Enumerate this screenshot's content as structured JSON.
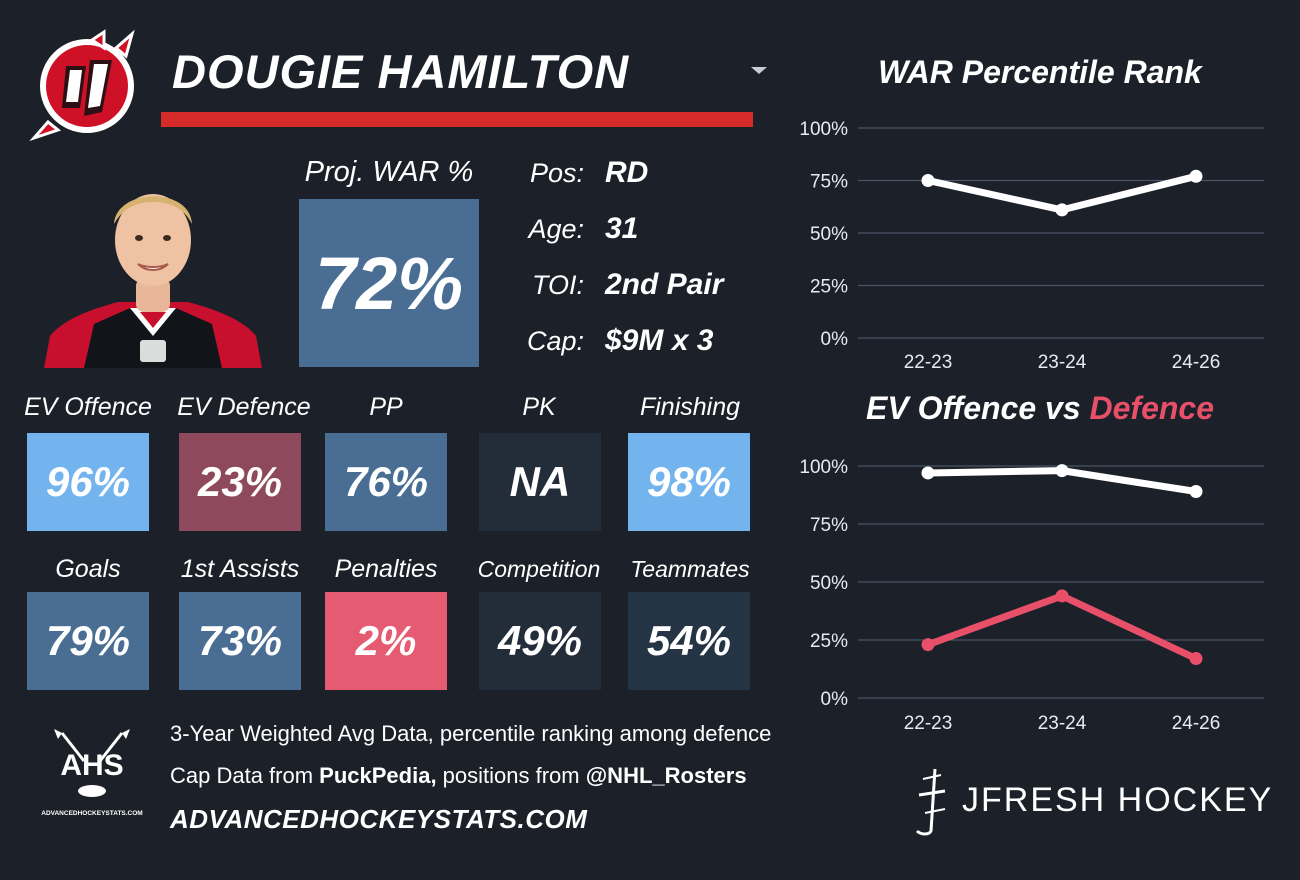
{
  "header": {
    "player_name": "DOUGIE HAMILTON",
    "bar_color": "#d62b28"
  },
  "team_logo": {
    "icon": "new-jersey-devils-logo-icon",
    "color": "#ce1126"
  },
  "headshot": {
    "icon": "player-headshot-icon"
  },
  "projection": {
    "label": "Proj. WAR %",
    "value": "72%",
    "color": "#4a6e93"
  },
  "info": [
    {
      "label": "Pos:",
      "value": "RD"
    },
    {
      "label": "Age:",
      "value": "31"
    },
    {
      "label": "TOI:",
      "value": "2nd Pair"
    },
    {
      "label": "Cap:",
      "value": "$9M x 3"
    }
  ],
  "tiles_row1": [
    {
      "label": "EV Offence",
      "value": "96%",
      "color": "#73b4ee",
      "text_color": "#ffffff"
    },
    {
      "label": "EV Defence",
      "value": "23%",
      "color": "#8e4a5c",
      "text_color": "#ffffff"
    },
    {
      "label": "PP",
      "value": "76%",
      "color": "#4a6e93",
      "text_color": "#ffffff"
    },
    {
      "label": "PK",
      "value": "NA",
      "color": "#232d3a",
      "text_color": "#ffffff"
    },
    {
      "label": "Finishing",
      "value": "98%",
      "color": "#73b4ee",
      "text_color": "#ffffff"
    }
  ],
  "tiles_row2": [
    {
      "label": "Goals",
      "value": "79%",
      "color": "#4a6e93",
      "text_color": "#ffffff"
    },
    {
      "label": "1st Assists",
      "value": "73%",
      "color": "#4a6e93",
      "text_color": "#ffffff"
    },
    {
      "label": "Penalties",
      "value": "2%",
      "color": "#e55c72",
      "text_color": "#ffffff"
    },
    {
      "label": "Competition",
      "value": "49%",
      "color": "#232d3a",
      "text_color": "#ffffff"
    },
    {
      "label": "Teammates",
      "value": "54%",
      "color": "#243444",
      "text_color": "#ffffff"
    }
  ],
  "chart_data": [
    {
      "type": "line",
      "title": "WAR Percentile Rank",
      "categories": [
        "22-23",
        "23-24",
        "24-26"
      ],
      "y_ticks": [
        "0%",
        "25%",
        "50%",
        "75%",
        "100%"
      ],
      "ylim": [
        0,
        100
      ],
      "grid": true,
      "series": [
        {
          "values": [
            75,
            61,
            77
          ],
          "color": "#ffffff"
        }
      ]
    },
    {
      "type": "line",
      "title_parts": [
        "EV Offence vs ",
        "Defence"
      ],
      "title_colors": [
        "#ffffff",
        "#e8506a"
      ],
      "categories": [
        "22-23",
        "23-24",
        "24-26"
      ],
      "y_ticks": [
        "0%",
        "25%",
        "50%",
        "75%",
        "100%"
      ],
      "ylim": [
        0,
        100
      ],
      "grid": true,
      "series": [
        {
          "values": [
            97,
            98,
            89
          ],
          "color": "#ffffff"
        },
        {
          "values": [
            23,
            44,
            17
          ],
          "color": "#e8506a"
        }
      ]
    }
  ],
  "footer": {
    "ahs_logo_text": "AHS",
    "ahs_logo_subtext": "ADVANCEDHOCKEYSTATS.COM",
    "line1": "3-Year Weighted Avg Data, percentile ranking among defence",
    "line2_prefix": "Cap Data from ",
    "line2_source1": "PuckPedia,",
    "line2_mid": " positions from ",
    "line2_source2": "@NHL_Rosters",
    "website": "ADVANCEDHOCKEYSTATS.COM",
    "brand_icon": "jfresh-logo-icon",
    "brand": "JFRESH HOCKEY"
  }
}
